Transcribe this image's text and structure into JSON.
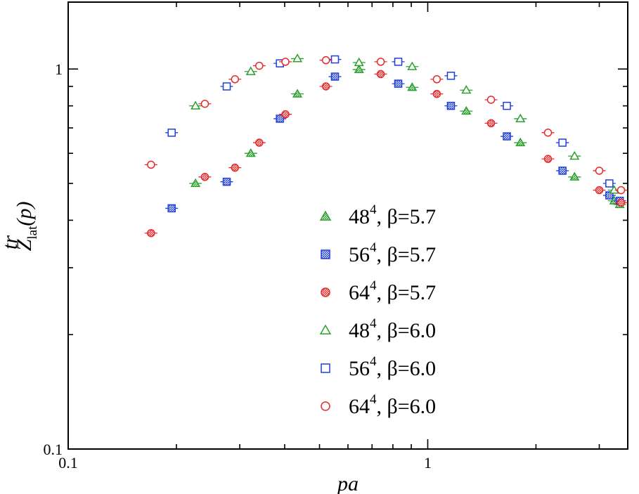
{
  "chart_data": {
    "type": "scatter",
    "title": "",
    "xlabel": "pa",
    "ylabel_main": "Z",
    "ylabel_sup": "tr",
    "ylabel_sub": "lat",
    "ylabel_arg": "(p)",
    "xscale": "log",
    "yscale": "log",
    "xlim": [
      0.1,
      3.6
    ],
    "ylim": [
      0.1,
      1.5
    ],
    "xticks": [
      {
        "value": 0.1,
        "label": "0.1"
      },
      {
        "value": 1,
        "label": "1"
      }
    ],
    "yticks": [
      {
        "value": 0.1,
        "label": "0.1"
      },
      {
        "value": 1,
        "label": "1"
      }
    ],
    "grid": false,
    "legend_position": "center-right",
    "series": [
      {
        "name": "48^4, β=5.7",
        "legend_base": "48",
        "legend_exp": "4",
        "legend_beta": ", β=5.7",
        "marker": "triangle",
        "fill": "hatched",
        "color": "#2ca02c",
        "points": [
          [
            0.226,
            0.5
          ],
          [
            0.322,
            0.6
          ],
          [
            0.434,
            0.86
          ],
          [
            0.644,
            0.997
          ],
          [
            0.905,
            0.895
          ],
          [
            1.28,
            0.775
          ],
          [
            1.81,
            0.64
          ],
          [
            2.56,
            0.52
          ],
          [
            3.3,
            0.45
          ],
          [
            3.42,
            0.44
          ]
        ]
      },
      {
        "name": "56^4, β=5.7",
        "legend_base": "56",
        "legend_exp": "4",
        "legend_beta": ", β=5.7",
        "marker": "square",
        "fill": "hatched",
        "color": "#1f3fdb",
        "points": [
          [
            0.194,
            0.43
          ],
          [
            0.276,
            0.505
          ],
          [
            0.388,
            0.74
          ],
          [
            0.552,
            0.955
          ],
          [
            0.828,
            0.915
          ],
          [
            1.16,
            0.8
          ],
          [
            1.66,
            0.665
          ],
          [
            2.37,
            0.54
          ],
          [
            3.2,
            0.465
          ],
          [
            3.42,
            0.45
          ]
        ]
      },
      {
        "name": "64^4, β=5.7",
        "legend_base": "64",
        "legend_exp": "4",
        "legend_beta": ", β=5.7",
        "marker": "circle",
        "fill": "hatched",
        "color": "#e8282b",
        "points": [
          [
            0.17,
            0.37
          ],
          [
            0.24,
            0.52
          ],
          [
            0.291,
            0.55
          ],
          [
            0.34,
            0.64
          ],
          [
            0.402,
            0.76
          ],
          [
            0.521,
            0.9
          ],
          [
            0.74,
            0.97
          ],
          [
            1.06,
            0.86
          ],
          [
            1.5,
            0.72
          ],
          [
            2.16,
            0.58
          ],
          [
            3.0,
            0.48
          ],
          [
            3.45,
            0.445
          ]
        ]
      },
      {
        "name": "48^4, β=6.0",
        "legend_base": "48",
        "legend_exp": "4",
        "legend_beta": ", β=6.0",
        "marker": "triangle",
        "fill": "open",
        "color": "#2ca02c",
        "points": [
          [
            0.226,
            0.8
          ],
          [
            0.322,
            0.985
          ],
          [
            0.434,
            1.065
          ],
          [
            0.644,
            1.04
          ],
          [
            0.905,
            1.015
          ],
          [
            1.28,
            0.88
          ],
          [
            1.81,
            0.74
          ],
          [
            2.56,
            0.59
          ],
          [
            3.3,
            0.48
          ]
        ]
      },
      {
        "name": "56^4, β=6.0",
        "legend_base": "56",
        "legend_exp": "4",
        "legend_beta": ", β=6.0",
        "marker": "square",
        "fill": "open",
        "color": "#1f3fdb",
        "points": [
          [
            0.194,
            0.68
          ],
          [
            0.276,
            0.9
          ],
          [
            0.388,
            1.035
          ],
          [
            0.552,
            1.06
          ],
          [
            0.828,
            1.045
          ],
          [
            1.16,
            0.96
          ],
          [
            1.66,
            0.8
          ],
          [
            2.37,
            0.64
          ],
          [
            3.2,
            0.5
          ]
        ]
      },
      {
        "name": "64^4, β=6.0",
        "legend_base": "64",
        "legend_exp": "4",
        "legend_beta": ", β=6.0",
        "marker": "circle",
        "fill": "open",
        "color": "#e8282b",
        "points": [
          [
            0.17,
            0.56
          ],
          [
            0.24,
            0.81
          ],
          [
            0.291,
            0.94
          ],
          [
            0.34,
            1.02
          ],
          [
            0.402,
            1.045
          ],
          [
            0.521,
            1.055
          ],
          [
            0.74,
            1.045
          ],
          [
            1.06,
            0.94
          ],
          [
            1.5,
            0.83
          ],
          [
            2.16,
            0.68
          ],
          [
            3.0,
            0.54
          ],
          [
            3.45,
            0.48
          ]
        ]
      }
    ]
  }
}
